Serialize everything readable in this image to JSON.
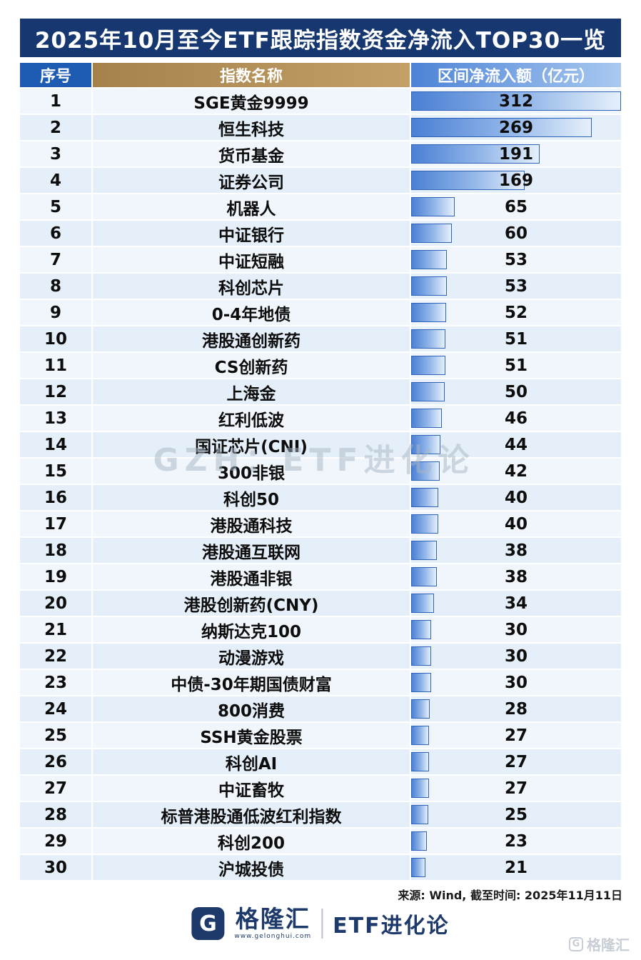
{
  "title": "2025年10月至今ETF跟踪指数资金净流入TOP30一览",
  "table_headers": {
    "rank": "序号",
    "name": "指数名称",
    "value": "区间净流入额（亿元）"
  },
  "chart_data": {
    "type": "bar",
    "orientation": "horizontal",
    "title": "2025年10月至今ETF跟踪指数资金净流入TOP30一览",
    "value_label": "区间净流入额（亿元）",
    "xlim": [
      0,
      312
    ],
    "legend": "none",
    "grid": false,
    "categories": [
      "SGE黄金9999",
      "恒生科技",
      "货币基金",
      "证券公司",
      "机器人",
      "中证银行",
      "中证短融",
      "科创芯片",
      "0-4年地债",
      "港股通创新药",
      "CS创新药",
      "上海金",
      "红利低波",
      "国证芯片(CNI)",
      "300非银",
      "科创50",
      "港股通科技",
      "港股通互联网",
      "港股通非银",
      "港股创新药(CNY)",
      "纳斯达克100",
      "动漫游戏",
      "中债-30年期国债财富",
      "800消费",
      "SSH黄金股票",
      "科创AI",
      "中证畜牧",
      "标普港股通低波红利指数",
      "科创200",
      "沪城投债"
    ],
    "values": [
      312,
      269,
      191,
      169,
      65,
      60,
      53,
      53,
      52,
      51,
      51,
      50,
      46,
      44,
      42,
      40,
      40,
      38,
      38,
      34,
      30,
      30,
      30,
      28,
      27,
      27,
      27,
      25,
      23,
      21
    ]
  },
  "watermark": "GZH：ETF进化论",
  "footer": {
    "source": "来源: Wind, 截至时间: 2025年11月11日",
    "brand_logo_letter": "G",
    "brand_name": "格隆汇",
    "brand_site": "www.gelonghui.com",
    "series_name": "ETF进化论",
    "corner_logo_letter": "G",
    "corner_watermark": "格隆汇"
  },
  "colors": {
    "title_bar": "#16376f",
    "rank_header": "#1e5cb3",
    "name_header_start": "#a5824c",
    "name_header_end": "#c3a067",
    "value_header_start": "#4d83d6",
    "value_header_end": "#a9c9f0",
    "bar_start": "#4b80d4",
    "bar_end": "#e6f0fb",
    "bar_border": "#2f63b8",
    "row_even": "#f0f6fc",
    "row_odd": "#e5eff9",
    "brand_navy": "#1d3a6b"
  }
}
